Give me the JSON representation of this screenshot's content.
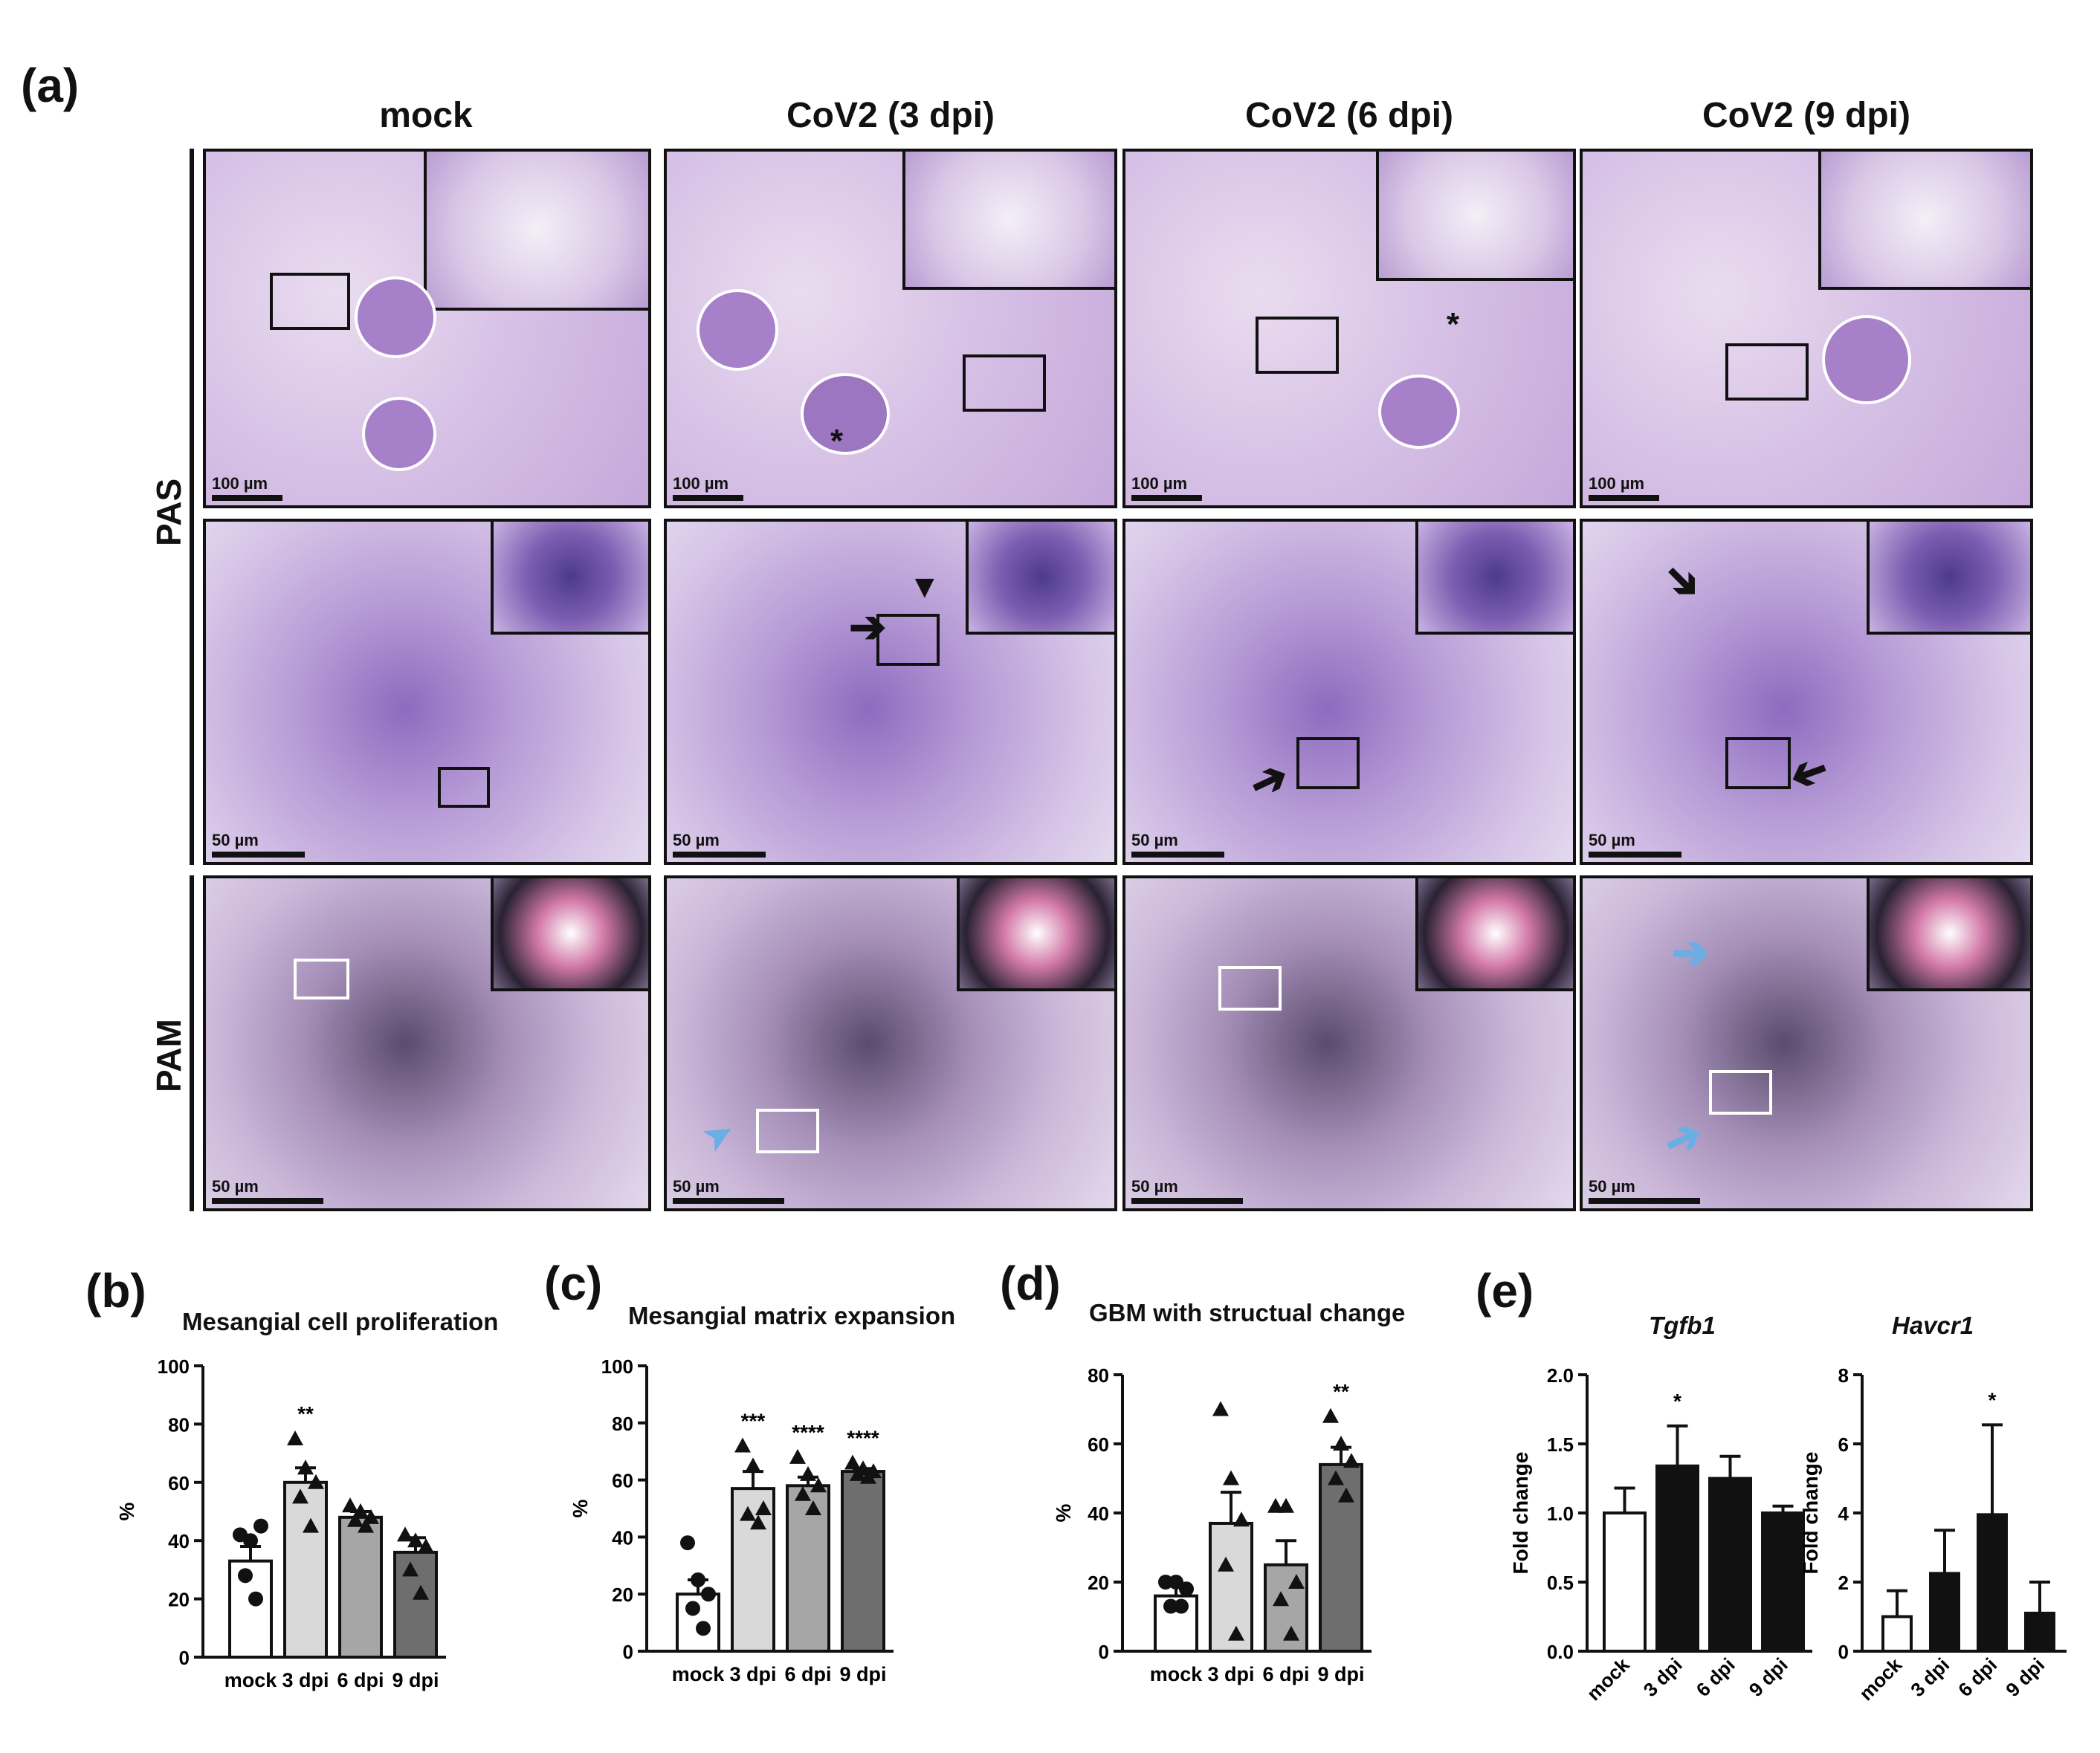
{
  "panel_labels": {
    "a": "(a)",
    "b": "(b)",
    "c": "(c)",
    "d": "(d)",
    "e": "(e)"
  },
  "columns": [
    "mock",
    "CoV2 (3 dpi)",
    "CoV2 (6 dpi)",
    "CoV2 (9 dpi)"
  ],
  "rows": {
    "pas": "PAS",
    "pam": "PAM"
  },
  "scalebars": {
    "row1": "100 µm",
    "row2": "50 µm",
    "row3": "50 µm"
  },
  "annotations": {
    "asterisk": "*"
  },
  "colors": {
    "pas_stain": "#c5a8da",
    "pam_stain": "#a58fb8",
    "highlight_arrow": "#6aaee6",
    "bar_dark": "#111111"
  },
  "chart_data": [
    {
      "id": "b",
      "type": "bar",
      "title": "Mesangial cell proliferation",
      "ylabel": "%",
      "xlabel": "",
      "ylim": [
        0,
        100
      ],
      "yticks": [
        "0",
        "20",
        "40",
        "60",
        "80",
        "100"
      ],
      "categories": [
        "mock",
        "3 dpi",
        "6 dpi",
        "9 dpi"
      ],
      "values": [
        33,
        60,
        48,
        36
      ],
      "errors": [
        5,
        5,
        2,
        5
      ],
      "bar_colors": [
        "#ffffff",
        "#d9d9d9",
        "#a6a6a6",
        "#6e6e6e"
      ],
      "significance": [
        "",
        "**",
        "",
        ""
      ],
      "points": [
        [
          42,
          40,
          45,
          28,
          20
        ],
        [
          75,
          65,
          60,
          55,
          45
        ],
        [
          52,
          50,
          48,
          47,
          45
        ],
        [
          42,
          40,
          38,
          30,
          22
        ]
      ]
    },
    {
      "id": "c",
      "type": "bar",
      "title": "Mesangial matrix expansion",
      "ylabel": "%",
      "xlabel": "",
      "ylim": [
        0,
        100
      ],
      "yticks": [
        "0",
        "20",
        "40",
        "60",
        "80",
        "100"
      ],
      "categories": [
        "mock",
        "3 dpi",
        "6 dpi",
        "9 dpi"
      ],
      "values": [
        20,
        57,
        58,
        63
      ],
      "errors": [
        5,
        6,
        3,
        1
      ],
      "bar_colors": [
        "#ffffff",
        "#d9d9d9",
        "#a6a6a6",
        "#6e6e6e"
      ],
      "significance": [
        "",
        "***",
        "****",
        "****"
      ],
      "points": [
        [
          38,
          25,
          20,
          15,
          8
        ],
        [
          72,
          65,
          50,
          48,
          45
        ],
        [
          68,
          62,
          58,
          55,
          50
        ],
        [
          66,
          64,
          63,
          62,
          61
        ]
      ]
    },
    {
      "id": "d",
      "type": "bar",
      "title": "GBM with structual change",
      "ylabel": "%",
      "xlabel": "",
      "ylim": [
        0,
        80
      ],
      "yticks": [
        "0",
        "20",
        "40",
        "60",
        "80"
      ],
      "categories": [
        "mock",
        "3 dpi",
        "6 dpi",
        "9 dpi"
      ],
      "values": [
        16,
        37,
        25,
        54
      ],
      "errors": [
        3,
        9,
        7,
        5
      ],
      "bar_colors": [
        "#ffffff",
        "#d9d9d9",
        "#a6a6a6",
        "#6e6e6e"
      ],
      "significance": [
        "",
        "",
        "",
        "**"
      ],
      "points": [
        [
          20,
          20,
          18,
          13,
          13
        ],
        [
          70,
          50,
          38,
          25,
          5
        ],
        [
          42,
          42,
          20,
          15,
          5
        ],
        [
          68,
          60,
          55,
          50,
          45
        ]
      ]
    },
    {
      "id": "e1",
      "type": "bar",
      "title": "Tgfb1",
      "ylabel": "Fold change",
      "xlabel": "",
      "ylim": [
        0,
        2.0
      ],
      "yticks": [
        "0.0",
        "0.5",
        "1.0",
        "1.5",
        "2.0"
      ],
      "categories": [
        "mock",
        "3 dpi",
        "6 dpi",
        "9 dpi"
      ],
      "values": [
        1.0,
        1.34,
        1.25,
        1.0
      ],
      "errors": [
        0.18,
        0.29,
        0.16,
        0.05
      ],
      "bar_colors": [
        "#ffffff",
        "#111111",
        "#111111",
        "#111111"
      ],
      "significance": [
        "",
        "*",
        "",
        ""
      ],
      "points": []
    },
    {
      "id": "e2",
      "type": "bar",
      "title": "Havcr1",
      "ylabel": "Fold change",
      "xlabel": "",
      "ylim": [
        0,
        8
      ],
      "yticks": [
        "0",
        "2",
        "4",
        "6",
        "8"
      ],
      "categories": [
        "mock",
        "3 dpi",
        "6 dpi",
        "9 dpi"
      ],
      "values": [
        1.0,
        2.25,
        3.95,
        1.1
      ],
      "errors": [
        0.75,
        1.25,
        2.6,
        0.9
      ],
      "bar_colors": [
        "#ffffff",
        "#111111",
        "#111111",
        "#111111"
      ],
      "significance": [
        "",
        "",
        "*",
        ""
      ],
      "points": []
    }
  ]
}
